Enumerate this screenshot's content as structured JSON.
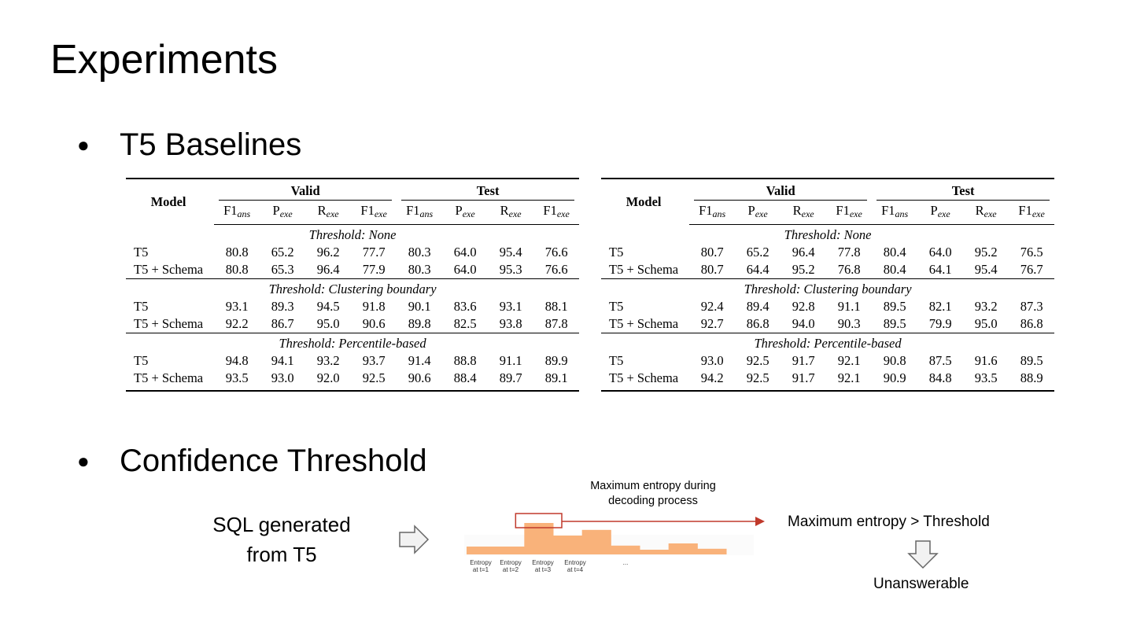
{
  "slide": {
    "title": "Experiments",
    "bullets": [
      "T5 Baselines",
      "Confidence Threshold"
    ],
    "bullet_glyph": "●"
  },
  "tables": [
    {
      "header": {
        "model": "Model",
        "groups": [
          "Valid",
          "Test"
        ],
        "metrics": [
          {
            "base": "F1",
            "sub": "ans"
          },
          {
            "base": "P",
            "sub": "exe"
          },
          {
            "base": "R",
            "sub": "exe"
          },
          {
            "base": "F1",
            "sub": "exe"
          },
          {
            "base": "F1",
            "sub": "ans"
          },
          {
            "base": "P",
            "sub": "exe"
          },
          {
            "base": "R",
            "sub": "exe"
          },
          {
            "base": "F1",
            "sub": "exe"
          }
        ]
      },
      "sections": [
        {
          "label": "Threshold: None",
          "rows": [
            {
              "model": "T5",
              "values": [
                "80.8",
                "65.2",
                "96.2",
                "77.7",
                "80.3",
                "64.0",
                "95.4",
                "76.6"
              ]
            },
            {
              "model": "T5 + Schema",
              "values": [
                "80.8",
                "65.3",
                "96.4",
                "77.9",
                "80.3",
                "64.0",
                "95.3",
                "76.6"
              ]
            }
          ]
        },
        {
          "label": "Threshold: Clustering boundary",
          "rows": [
            {
              "model": "T5",
              "values": [
                "93.1",
                "89.3",
                "94.5",
                "91.8",
                "90.1",
                "83.6",
                "93.1",
                "88.1"
              ]
            },
            {
              "model": "T5 + Schema",
              "values": [
                "92.2",
                "86.7",
                "95.0",
                "90.6",
                "89.8",
                "82.5",
                "93.8",
                "87.8"
              ]
            }
          ]
        },
        {
          "label": "Threshold: Percentile-based",
          "rows": [
            {
              "model": "T5",
              "values": [
                "94.8",
                "94.1",
                "93.2",
                "93.7",
                "91.4",
                "88.8",
                "91.1",
                "89.9"
              ]
            },
            {
              "model": "T5 + Schema",
              "values": [
                "93.5",
                "93.0",
                "92.0",
                "92.5",
                "90.6",
                "88.4",
                "89.7",
                "89.1"
              ]
            }
          ]
        }
      ]
    },
    {
      "header": {
        "model": "Model",
        "groups": [
          "Valid",
          "Test"
        ],
        "metrics": [
          {
            "base": "F1",
            "sub": "ans"
          },
          {
            "base": "P",
            "sub": "exe"
          },
          {
            "base": "R",
            "sub": "exe"
          },
          {
            "base": "F1",
            "sub": "exe"
          },
          {
            "base": "F1",
            "sub": "ans"
          },
          {
            "base": "P",
            "sub": "exe"
          },
          {
            "base": "R",
            "sub": "exe"
          },
          {
            "base": "F1",
            "sub": "exe"
          }
        ]
      },
      "sections": [
        {
          "label": "Threshold: None",
          "rows": [
            {
              "model": "T5",
              "values": [
                "80.7",
                "65.2",
                "96.4",
                "77.8",
                "80.4",
                "64.0",
                "95.2",
                "76.5"
              ]
            },
            {
              "model": "T5 + Schema",
              "values": [
                "80.7",
                "64.4",
                "95.2",
                "76.8",
                "80.4",
                "64.1",
                "95.4",
                "76.7"
              ]
            }
          ]
        },
        {
          "label": "Threshold: Clustering boundary",
          "rows": [
            {
              "model": "T5",
              "values": [
                "92.4",
                "89.4",
                "92.8",
                "91.1",
                "89.5",
                "82.1",
                "93.2",
                "87.3"
              ]
            },
            {
              "model": "T5 + Schema",
              "values": [
                "92.7",
                "86.8",
                "94.0",
                "90.3",
                "89.5",
                "79.9",
                "95.0",
                "86.8"
              ]
            }
          ]
        },
        {
          "label": "Threshold: Percentile-based",
          "rows": [
            {
              "model": "T5",
              "values": [
                "93.0",
                "92.5",
                "91.7",
                "92.1",
                "90.8",
                "87.5",
                "91.6",
                "89.5"
              ]
            },
            {
              "model": "T5 + Schema",
              "values": [
                "94.2",
                "92.5",
                "91.7",
                "92.1",
                "90.9",
                "84.8",
                "93.5",
                "88.9"
              ]
            }
          ]
        }
      ]
    }
  ],
  "diagram": {
    "input_lines": [
      "SQL generated",
      "from T5"
    ],
    "annotation_lines": [
      "Maximum entropy during",
      "decoding process"
    ],
    "condition": "Maximum entropy > Threshold",
    "result": "Unanswerable",
    "entropy_ticks": [
      [
        "Entropy",
        "at t=1"
      ],
      [
        "Entropy",
        "at t=2"
      ],
      [
        "Entropy",
        "at t=3"
      ],
      [
        "Entropy",
        "at t=4"
      ],
      [
        "...",
        ""
      ]
    ],
    "entropy_levels": [
      0.25,
      0.25,
      1.0,
      0.6,
      0.78,
      0.28,
      0.15,
      0.35,
      0.18
    ],
    "colors": {
      "bars": "#f9b27a",
      "highlight": "#c0392b",
      "arrow_outline": "#666666",
      "arrow_fill": "#f2f2f2"
    }
  }
}
